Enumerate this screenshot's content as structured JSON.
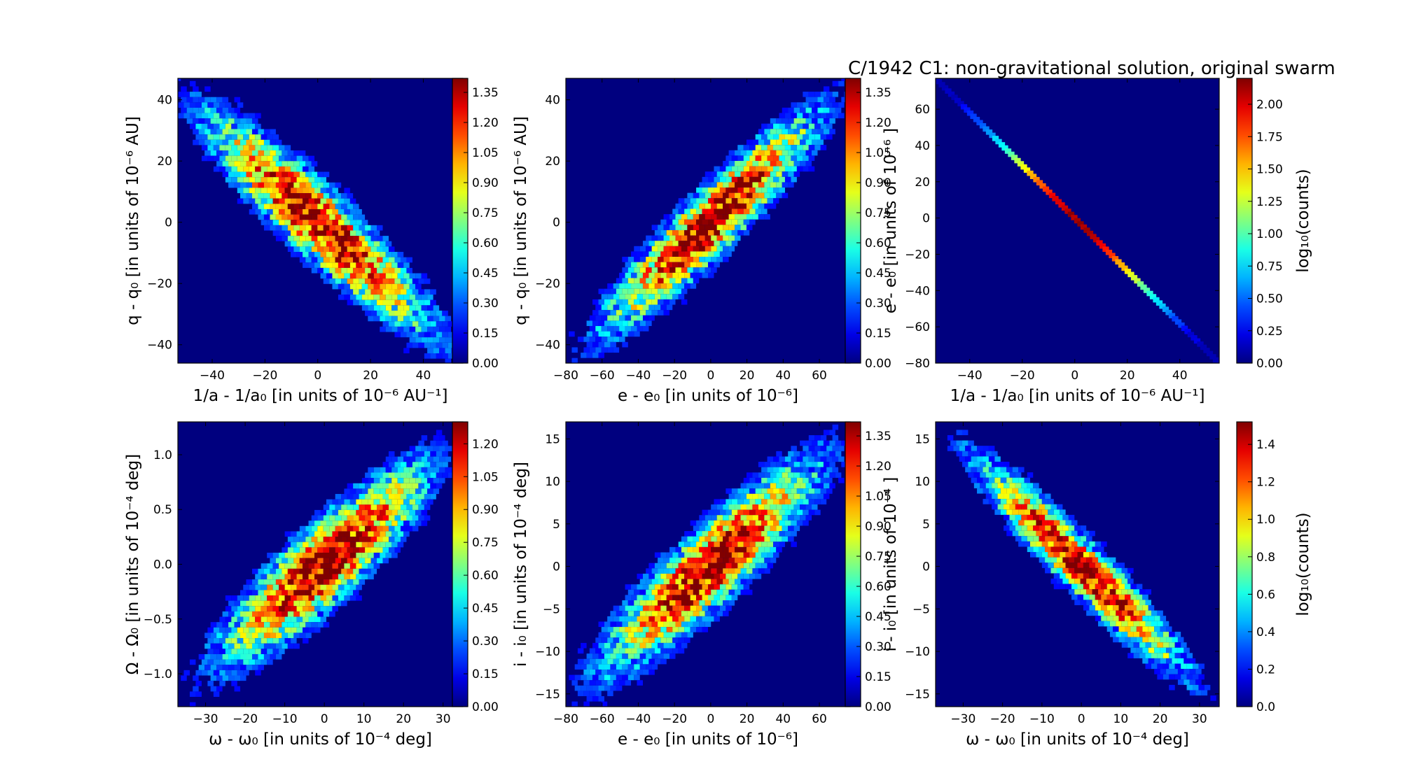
{
  "title": "C/1942 C1:  non-gravitational solution, original swarm",
  "colors": {
    "background": "#00007f",
    "map": "jet"
  },
  "chart_data": [
    {
      "type": "heatmap",
      "subtype": "hexbin",
      "xlabel": "1/a - 1/a₀ [in units of 10⁻⁶ AU⁻¹]",
      "ylabel": "q - q₀ [in units of 10⁻⁶ AU]",
      "xlim": [
        -53,
        55
      ],
      "ylim": [
        -46,
        47
      ],
      "xticks": [
        -40,
        -20,
        0,
        20,
        40
      ],
      "yticks": [
        -40,
        -20,
        0,
        20,
        40
      ],
      "xtick_labels": [
        "−40",
        "−20",
        "0",
        "20",
        "40"
      ],
      "ytick_labels": [
        "−40",
        "−20",
        "0",
        "20",
        "40"
      ],
      "correlation": -0.92,
      "spread": {
        "x": 18,
        "y": 15
      },
      "colorbar": {
        "label": "",
        "max": 1.42,
        "ticks": [
          "0.00",
          "0.15",
          "0.30",
          "0.45",
          "0.60",
          "0.75",
          "0.90",
          "1.05",
          "1.20",
          "1.35"
        ]
      }
    },
    {
      "type": "heatmap",
      "subtype": "hexbin",
      "xlabel": "e - e₀ [in units of 10⁻⁶]",
      "ylabel": "q - q₀ [in units of 10⁻⁶ AU]",
      "xlim": [
        -80,
        77
      ],
      "ylim": [
        -46,
        47
      ],
      "xticks": [
        -80,
        -60,
        -40,
        -20,
        0,
        20,
        40,
        60
      ],
      "yticks": [
        -40,
        -20,
        0,
        20,
        40
      ],
      "xtick_labels": [
        "−80",
        "−60",
        "−40",
        "−20",
        "0",
        "20",
        "40",
        "60"
      ],
      "ytick_labels": [
        "−40",
        "−20",
        "0",
        "20",
        "40"
      ],
      "correlation": 0.93,
      "spread": {
        "x": 25,
        "y": 15
      },
      "colorbar": {
        "label": "",
        "max": 1.42,
        "ticks": [
          "0.00",
          "0.15",
          "0.30",
          "0.45",
          "0.60",
          "0.75",
          "0.90",
          "1.05",
          "1.20",
          "1.35"
        ]
      }
    },
    {
      "type": "heatmap",
      "subtype": "hexbin",
      "xlabel": "1/a - 1/a₀ [in units of 10⁻⁶ AU⁻¹]",
      "ylabel": "e - e₀ [in units of 10⁻⁶ ]",
      "xlim": [
        -53,
        55
      ],
      "ylim": [
        -80,
        77
      ],
      "xticks": [
        -40,
        -20,
        0,
        20,
        40
      ],
      "yticks": [
        -80,
        -60,
        -40,
        -20,
        0,
        20,
        40,
        60
      ],
      "xtick_labels": [
        "−40",
        "−20",
        "0",
        "20",
        "40"
      ],
      "ytick_labels": [
        "−80",
        "−60",
        "−40",
        "−20",
        "0",
        "20",
        "40",
        "60"
      ],
      "correlation": -0.999,
      "line": {
        "x": [
          -53,
          55
        ],
        "y": [
          77,
          -80
        ]
      },
      "colorbar": {
        "label": "log₁₀(counts)",
        "max": 2.2,
        "ticks": [
          "0.00",
          "0.25",
          "0.50",
          "0.75",
          "1.00",
          "1.25",
          "1.50",
          "1.75",
          "2.00"
        ]
      }
    },
    {
      "type": "heatmap",
      "subtype": "hexbin",
      "xlabel": "ω - ω₀ [in units of 10⁻⁴ deg]",
      "ylabel": "Ω - Ω₀ [in units of 10⁻⁴ deg]",
      "xlim": [
        -37,
        35
      ],
      "ylim": [
        -1.3,
        1.3
      ],
      "xticks": [
        -30,
        -20,
        -10,
        0,
        10,
        20,
        30
      ],
      "yticks": [
        -1.0,
        -0.5,
        0.0,
        0.5,
        1.0
      ],
      "xtick_labels": [
        "−30",
        "−20",
        "−10",
        "0",
        "10",
        "20",
        "30"
      ],
      "ytick_labels": [
        "−1.0",
        "−0.5",
        "0.0",
        "0.5",
        "1.0"
      ],
      "correlation": 0.88,
      "spread": {
        "x": 11,
        "y": 0.38
      },
      "colorbar": {
        "label": "",
        "max": 1.3,
        "ticks": [
          "0.00",
          "0.15",
          "0.30",
          "0.45",
          "0.60",
          "0.75",
          "0.90",
          "1.05",
          "1.20"
        ]
      }
    },
    {
      "type": "heatmap",
      "subtype": "hexbin",
      "xlabel": "e - e₀ [in units of 10⁻⁶]",
      "ylabel": "i - i₀ [in units of 10⁻⁴ deg]",
      "xlim": [
        -80,
        77
      ],
      "ylim": [
        -16.5,
        17
      ],
      "xticks": [
        -80,
        -60,
        -40,
        -20,
        0,
        20,
        40,
        60
      ],
      "yticks": [
        -15,
        -10,
        -5,
        0,
        5,
        10,
        15
      ],
      "xtick_labels": [
        "−80",
        "−60",
        "−40",
        "−20",
        "0",
        "20",
        "40",
        "60"
      ],
      "ytick_labels": [
        "−15",
        "−10",
        "−5",
        "0",
        "5",
        "10",
        "15"
      ],
      "correlation": 0.9,
      "spread": {
        "x": 25,
        "y": 5.2
      },
      "colorbar": {
        "label": "",
        "max": 1.42,
        "ticks": [
          "0.00",
          "0.15",
          "0.30",
          "0.45",
          "0.60",
          "0.75",
          "0.90",
          "1.05",
          "1.20",
          "1.35"
        ]
      }
    },
    {
      "type": "heatmap",
      "subtype": "hexbin",
      "xlabel": "ω - ω₀ [in units of 10⁻⁴ deg]",
      "ylabel": "i - i₀ [in units of 10⁻⁴ ]",
      "xlim": [
        -37,
        35
      ],
      "ylim": [
        -16.5,
        17
      ],
      "xticks": [
        -30,
        -20,
        -10,
        0,
        10,
        20,
        30
      ],
      "yticks": [
        -15,
        -10,
        -5,
        0,
        5,
        10,
        15
      ],
      "xtick_labels": [
        "−30",
        "−20",
        "−10",
        "0",
        "10",
        "20",
        "30"
      ],
      "ytick_labels": [
        "−15",
        "−10",
        "−5",
        "0",
        "5",
        "10",
        "15"
      ],
      "correlation": -0.95,
      "spread": {
        "x": 11,
        "y": 5.2
      },
      "colorbar": {
        "label": "log₁₀(counts)",
        "max": 1.52,
        "ticks": [
          "0.0",
          "0.2",
          "0.4",
          "0.6",
          "0.8",
          "1.0",
          "1.2",
          "1.4"
        ]
      }
    }
  ]
}
